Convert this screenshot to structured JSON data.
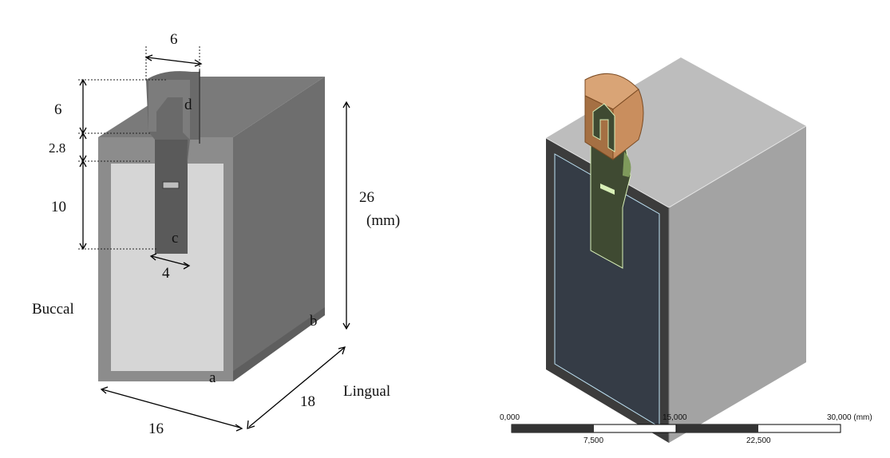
{
  "left_figure": {
    "dim_top_width": "6",
    "dim_post_height": "6",
    "dim_gap_height": "2.8",
    "dim_root_height": "10",
    "dim_root_width": "4",
    "dim_total_height": "26",
    "dim_unit": "(mm)",
    "dim_depth": "18",
    "dim_front_width": "16",
    "point_a": "a",
    "point_b": "b",
    "point_c": "c",
    "point_d": "d",
    "label_buccal": "Buccal",
    "label_lingual": "Lingual"
  },
  "right_figure": {
    "scale_bar": {
      "tick_0": "0,000",
      "tick_mid": "15,000",
      "tick_max": "30,000 (mm)",
      "tick_q1": "7,500",
      "tick_q3": "22,500"
    }
  },
  "colors": {
    "left_block_side": "#6e6e6e",
    "left_block_top": "#7a7a7a",
    "left_block_front_frame": "#8c8c8c",
    "left_block_front_inner": "#d6d6d6",
    "right_block_top": "#bdbdbd",
    "right_block_side": "#a3a3a3",
    "right_block_front": "#353c46",
    "right_crown": "#c98e5e",
    "right_post": "#3f4a32",
    "right_outline": "#d9f0b8"
  }
}
